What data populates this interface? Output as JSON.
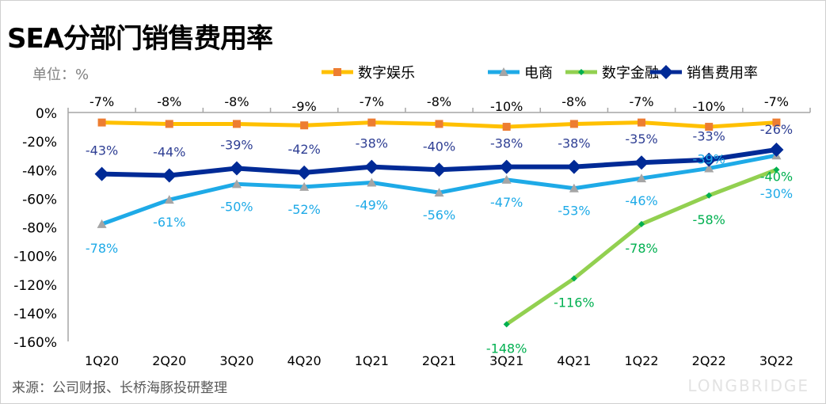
{
  "chart_data": {
    "type": "line",
    "title": "SEA分部门销售费用率",
    "unit_label": "单位：%",
    "categories": [
      "1Q20",
      "2Q20",
      "3Q20",
      "4Q20",
      "1Q21",
      "2Q21",
      "3Q21",
      "4Q21",
      "1Q22",
      "2Q22",
      "3Q22"
    ],
    "ylim": [
      -160,
      0
    ],
    "yticks": [
      "0%",
      "-20%",
      "-40%",
      "-60%",
      "-80%",
      "-100%",
      "-120%",
      "-140%",
      "-160%"
    ],
    "grid": false,
    "legend_position": "top",
    "series": [
      {
        "name": "数字娱乐",
        "color": "#FFC000",
        "marker_color": "#ED7D31",
        "marker": "square",
        "label_color": "#000000",
        "values": [
          -7,
          -8,
          -8,
          -9,
          -7,
          -8,
          -10,
          -8,
          -7,
          -10,
          -7
        ]
      },
      {
        "name": "电商",
        "color": "#1EAAE7",
        "marker_color": "#A5A5A5",
        "marker": "triangle",
        "label_color": "#1EAAE7",
        "values": [
          -78,
          -61,
          -50,
          -52,
          -49,
          -56,
          -47,
          -53,
          -46,
          -39,
          -30
        ]
      },
      {
        "name": "数字金融",
        "color": "#92D050",
        "marker_color": "#00B050",
        "marker": "diamond-small",
        "label_color": "#00B050",
        "values": [
          null,
          null,
          null,
          null,
          null,
          null,
          -148,
          -116,
          -78,
          -58,
          -40
        ]
      },
      {
        "name": "销售费用率",
        "color": "#002A96",
        "marker_color": "#002A96",
        "marker": "diamond",
        "label_color": "#2F3F94",
        "values": [
          -43,
          -44,
          -39,
          -42,
          -38,
          -40,
          -38,
          -38,
          -35,
          -33,
          -26
        ]
      }
    ]
  },
  "source": "来源：公司财报、长桥海豚投研整理",
  "watermark": "LONGBRIDGE"
}
